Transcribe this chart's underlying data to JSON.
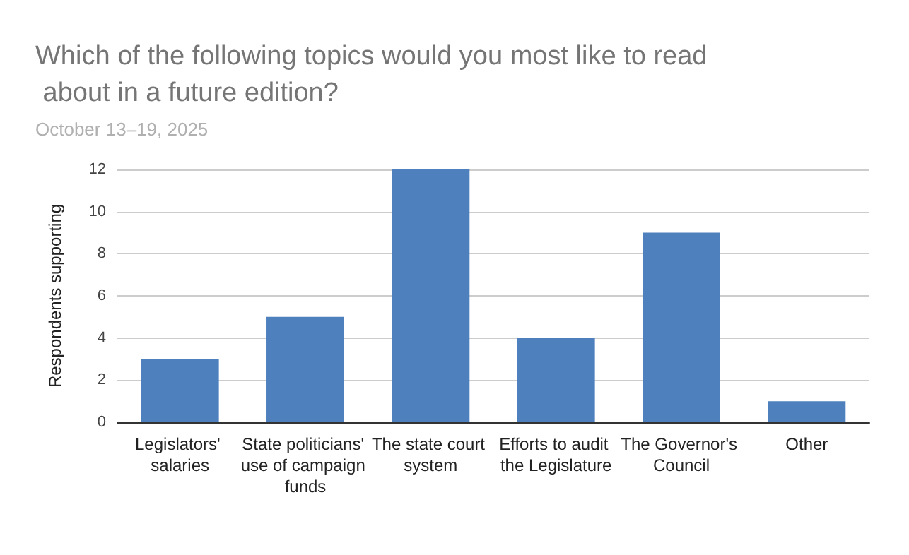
{
  "chart_data": {
    "type": "bar",
    "title": "Which of the following topics would you most like to read about in a future edition?",
    "subtitle": "October 13–19, 2025",
    "ylabel": "Respondents supporting",
    "categories": [
      "Legislators' salaries",
      "State politicians' use of campaign funds",
      "The state court system",
      "Efforts to audit the Legislature",
      "The Governor's Council",
      "Other"
    ],
    "values": [
      3,
      5,
      12,
      4,
      9,
      1
    ],
    "color": "#4e80bd",
    "ylim": [
      0,
      12
    ],
    "yticks": [
      0,
      2,
      4,
      6,
      8,
      10,
      12
    ],
    "grid": "y"
  }
}
